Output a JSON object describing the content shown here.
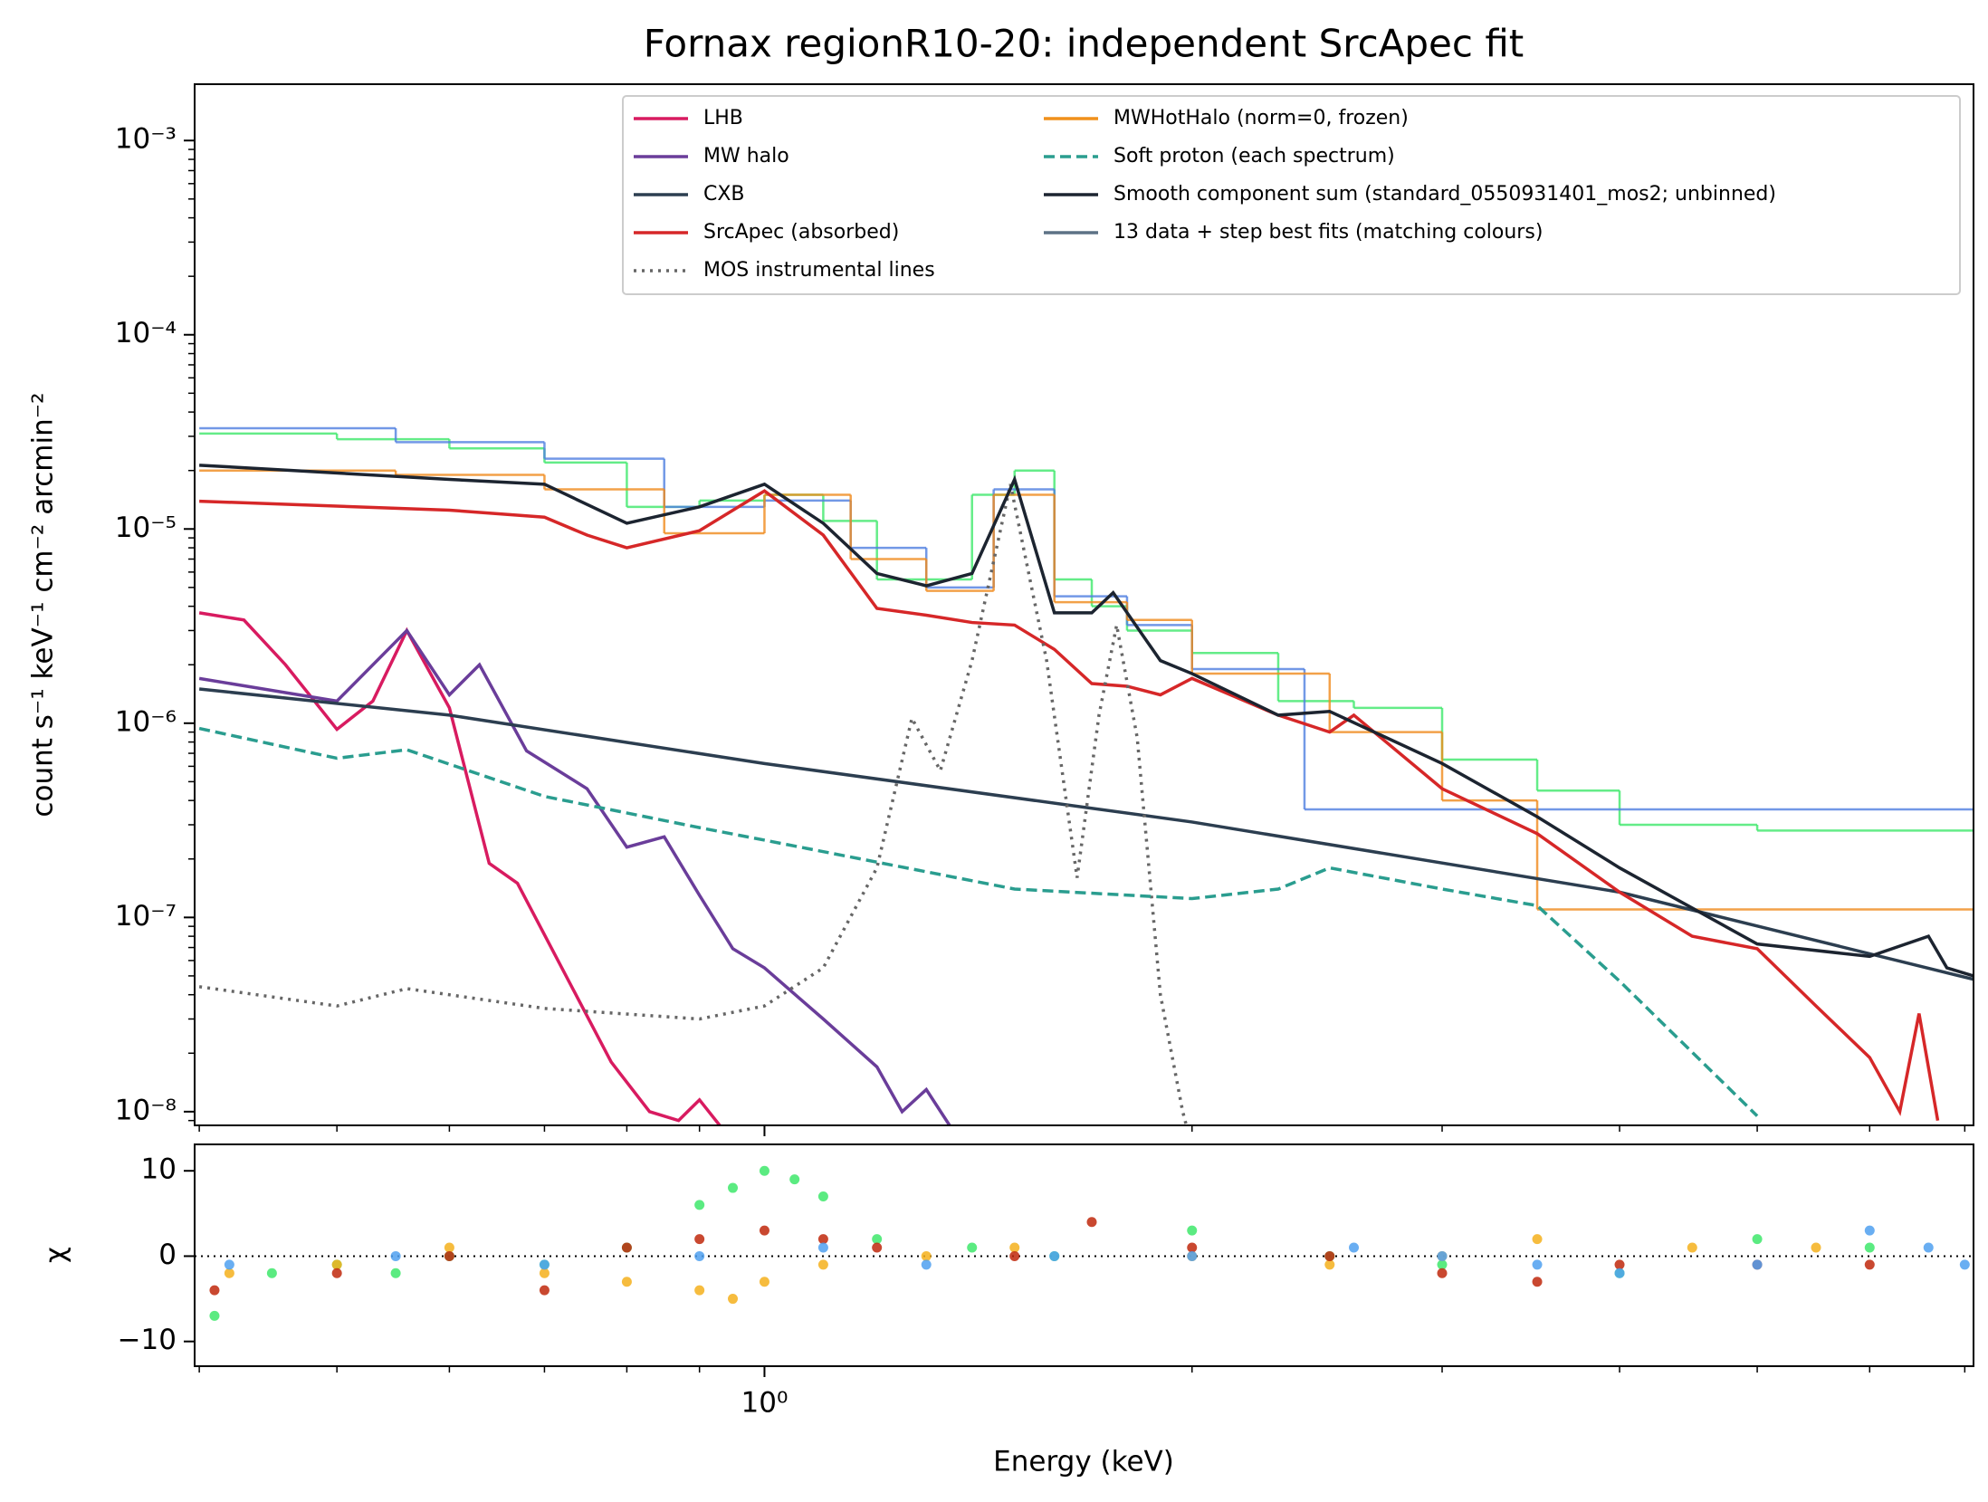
{
  "chart_data": [
    {
      "type": "line",
      "title": "Fornax regionR10-20: independent SrcApec fit",
      "ylabel": "count s⁻¹ keV⁻¹ cm⁻² arcmin⁻²",
      "xscale": "log",
      "yscale": "log",
      "xlim": [
        0.397,
        7.1
      ],
      "ylim": [
        8.5e-09,
        0.00195
      ],
      "yticks": [
        {
          "value": 1e-08,
          "label": "10⁻⁸"
        },
        {
          "value": 1e-07,
          "label": "10⁻⁷"
        },
        {
          "value": 1e-06,
          "label": "10⁻⁶"
        },
        {
          "value": 1e-05,
          "label": "10⁻⁵"
        },
        {
          "value": 0.0001,
          "label": "10⁻⁴"
        },
        {
          "value": 0.001,
          "label": "10⁻³"
        }
      ],
      "legend": "upper right",
      "series": [
        {
          "name": "LHB",
          "color": "#d81b60",
          "style": "solid",
          "x": [
            0.4,
            0.43,
            0.46,
            0.5,
            0.53,
            0.56,
            0.6,
            0.64,
            0.67,
            0.72,
            0.78,
            0.83,
            0.87,
            0.9,
            0.93
          ],
          "values": [
            3.7e-06,
            3.4e-06,
            2e-06,
            9.3e-07,
            1.3e-06,
            3e-06,
            1.2e-06,
            1.9e-07,
            1.5e-07,
            5.5e-08,
            1.8e-08,
            1e-08,
            9e-09,
            1.15e-08,
            8.5e-09
          ]
        },
        {
          "name": "MW halo",
          "color": "#6a3d9a",
          "style": "solid",
          "x": [
            0.4,
            0.5,
            0.56,
            0.6,
            0.63,
            0.68,
            0.75,
            0.8,
            0.85,
            0.9,
            0.95,
            1.0,
            1.1,
            1.2,
            1.25,
            1.3,
            1.35
          ],
          "values": [
            1.7e-06,
            1.3e-06,
            3e-06,
            1.4e-06,
            2e-06,
            7.2e-07,
            4.6e-07,
            2.3e-07,
            2.6e-07,
            1.3e-07,
            6.9e-08,
            5.5e-08,
            3e-08,
            1.7e-08,
            1e-08,
            1.3e-08,
            8.5e-09
          ]
        },
        {
          "name": "CXB",
          "color": "#2c3e50",
          "style": "solid",
          "x": [
            0.4,
            0.6,
            1.0,
            2.0,
            4.0,
            7.1
          ],
          "values": [
            1.5e-06,
            1.1e-06,
            6.2e-07,
            3.1e-07,
            1.35e-07,
            4.8e-08
          ]
        },
        {
          "name": "SrcApec (absorbed)",
          "color": "#d62728",
          "style": "solid",
          "x": [
            0.4,
            0.6,
            0.7,
            0.75,
            0.8,
            0.9,
            1.0,
            1.1,
            1.2,
            1.3,
            1.4,
            1.5,
            1.6,
            1.7,
            1.8,
            1.9,
            2.0,
            2.3,
            2.5,
            2.6,
            3.0,
            3.5,
            4.0,
            4.5,
            5.0,
            5.5,
            6.0,
            6.3,
            6.5,
            6.7
          ],
          "values": [
            1.39e-05,
            1.25e-05,
            1.15e-05,
            9.3e-06,
            8e-06,
            9.8e-06,
            1.57e-05,
            9.3e-06,
            3.9e-06,
            3.6e-06,
            3.3e-06,
            3.2e-06,
            2.4e-06,
            1.6e-06,
            1.55e-06,
            1.4e-06,
            1.7e-06,
            1.1e-06,
            9e-07,
            1.1e-06,
            4.6e-07,
            2.7e-07,
            1.35e-07,
            8e-08,
            6.9e-08,
            3.5e-08,
            1.9e-08,
            1e-08,
            3.2e-08,
            9e-09
          ]
        },
        {
          "name": "MOS instrumental lines",
          "color": "#666666",
          "style": "dotted",
          "x": [
            0.4,
            0.5,
            0.56,
            0.7,
            0.9,
            1.0,
            1.1,
            1.2,
            1.27,
            1.33,
            1.4,
            1.49,
            1.58,
            1.66,
            1.72,
            1.77,
            1.83,
            1.9,
            1.97,
            2.0
          ],
          "values": [
            4.4e-08,
            3.5e-08,
            4.3e-08,
            3.4e-08,
            3e-08,
            3.5e-08,
            5.5e-08,
            1.8e-07,
            1.06e-06,
            5.7e-07,
            2.1e-06,
            1.7e-05,
            2.1e-06,
            1.6e-07,
            1.1e-06,
            3.2e-06,
            8.4e-07,
            4e-08,
            1e-08,
            6.6e-09
          ]
        },
        {
          "name": "MWHotHalo (norm=0, frozen)",
          "color": "#f0901c",
          "style": "solid"
        },
        {
          "name": "Soft proton (each spectrum)",
          "color": "#2a9d8f",
          "style": "dashed",
          "x": [
            0.4,
            0.5,
            0.56,
            0.7,
            0.9,
            1.0,
            1.5,
            2.0,
            2.3,
            2.5,
            3.0,
            3.5,
            4.0,
            5.0
          ],
          "values": [
            9.4e-07,
            6.6e-07,
            7.3e-07,
            4.2e-07,
            2.9e-07,
            2.5e-07,
            1.4e-07,
            1.25e-07,
            1.4e-07,
            1.8e-07,
            1.4e-07,
            1.15e-07,
            4.7e-08,
            9.5e-09
          ]
        },
        {
          "name": "Smooth component sum (standard_0550931401_mos2; unbinned)",
          "color": "#1c2430",
          "style": "solid",
          "x": [
            0.4,
            0.6,
            0.7,
            0.8,
            0.9,
            1.0,
            1.1,
            1.2,
            1.3,
            1.4,
            1.5,
            1.6,
            1.7,
            1.76,
            1.9,
            2.0,
            2.3,
            2.5,
            3.0,
            3.5,
            4.0,
            5.0,
            6.0,
            6.6,
            6.8,
            7.1
          ],
          "values": [
            2.13e-05,
            1.8e-05,
            1.7e-05,
            1.07e-05,
            1.3e-05,
            1.7e-05,
            1.07e-05,
            5.9e-06,
            5.1e-06,
            5.9e-06,
            1.8e-05,
            3.7e-06,
            3.7e-06,
            4.7e-06,
            2.1e-06,
            1.8e-06,
            1.1e-06,
            1.15e-06,
            6.2e-07,
            3.3e-07,
            1.8e-07,
            7.3e-08,
            6.3e-08,
            8e-08,
            5.5e-08,
            5e-08
          ]
        },
        {
          "name": "13 data + step best fits (matching colours)",
          "color": "#5d7285",
          "style": "solid"
        }
      ],
      "steps": [
        {
          "color": "#3ee86b",
          "x": [
            0.4,
            0.5,
            0.6,
            0.7,
            0.8,
            0.9,
            1.0,
            1.1,
            1.2,
            1.3,
            1.4,
            1.5,
            1.6,
            1.7,
            1.8,
            2.0,
            2.3,
            2.6,
            3.0,
            3.5,
            4.0,
            5.0
          ],
          "values": [
            3.1e-05,
            2.9e-05,
            2.6e-05,
            2.2e-05,
            1.3e-05,
            1.4e-05,
            1.5e-05,
            1.1e-05,
            5.5e-06,
            5.5e-06,
            1.5e-05,
            2e-05,
            5.5e-06,
            4e-06,
            3e-06,
            2.3e-06,
            1.3e-06,
            1.2e-06,
            6.5e-07,
            4.5e-07,
            3e-07,
            2.8e-07
          ]
        },
        {
          "color": "#4f7fe0",
          "x": [
            0.4,
            0.55,
            0.7,
            0.85,
            1.0,
            1.15,
            1.3,
            1.45,
            1.6,
            1.8,
            2.0,
            2.4
          ],
          "values": [
            3.3e-05,
            2.8e-05,
            2.3e-05,
            1.3e-05,
            1.4e-05,
            8e-06,
            5e-06,
            1.6e-05,
            4.5e-06,
            3.2e-06,
            1.9e-06,
            3.6e-07
          ]
        },
        {
          "color": "#f08a1c",
          "x": [
            0.4,
            0.55,
            0.7,
            0.85,
            1.0,
            1.15,
            1.3,
            1.45,
            1.6,
            1.8,
            2.0,
            2.5,
            3.0,
            3.5
          ],
          "values": [
            2e-05,
            1.9e-05,
            1.6e-05,
            9.5e-06,
            1.5e-05,
            7e-06,
            4.8e-06,
            1.5e-05,
            4.2e-06,
            3.4e-06,
            1.8e-06,
            9e-07,
            4e-07,
            1.1e-07
          ]
        }
      ]
    },
    {
      "type": "scatter",
      "ylabel": "χ",
      "xlabel": "Energy (keV)",
      "xscale": "log",
      "xlim": [
        0.397,
        7.1
      ],
      "ylim": [
        -12.9,
        13.1
      ],
      "xticks": [
        {
          "value": 1,
          "label": "10⁰"
        }
      ],
      "yticks": [
        {
          "value": -10,
          "label": "−10"
        },
        0,
        10
      ],
      "hline": 0,
      "series": [
        {
          "color": "#3ee86b",
          "x": [
            0.41,
            0.45,
            0.5,
            0.55,
            0.6,
            0.7,
            0.8,
            0.9,
            0.95,
            1.0,
            1.05,
            1.1,
            1.2,
            1.4,
            1.6,
            2.0,
            2.5,
            3.0,
            4.0,
            5.0,
            6.0
          ],
          "values": [
            -7,
            -2,
            -1,
            -2,
            0,
            -1,
            1,
            6,
            8,
            10,
            9,
            7,
            2,
            1,
            0,
            3,
            0,
            -1,
            -2,
            2,
            1
          ]
        },
        {
          "color": "#f5b01c",
          "x": [
            0.42,
            0.5,
            0.6,
            0.7,
            0.8,
            0.9,
            0.95,
            1.0,
            1.1,
            1.3,
            1.5,
            2.0,
            2.5,
            3.0,
            3.5,
            4.5,
            5.5
          ],
          "values": [
            -2,
            -1,
            1,
            -2,
            -3,
            -4,
            -5,
            -3,
            -1,
            0,
            1,
            0,
            -1,
            0,
            2,
            1,
            1
          ]
        },
        {
          "color": "#c0280c",
          "x": [
            0.41,
            0.5,
            0.6,
            0.7,
            0.8,
            0.9,
            1.0,
            1.1,
            1.2,
            1.5,
            1.7,
            2.0,
            2.5,
            3.0,
            3.5,
            4.0,
            5.0,
            6.0
          ],
          "values": [
            -4,
            -2,
            0,
            -4,
            1,
            2,
            3,
            2,
            1,
            0,
            4,
            1,
            0,
            -2,
            -3,
            -1,
            -1,
            -1
          ]
        },
        {
          "color": "#4fa0f0",
          "x": [
            0.42,
            0.55,
            0.7,
            0.9,
            1.1,
            1.3,
            1.6,
            2.0,
            2.6,
            3.0,
            3.5,
            4.0,
            5.0,
            6.0,
            6.6,
            7.0
          ],
          "values": [
            -1,
            0,
            -1,
            0,
            1,
            -1,
            0,
            0,
            1,
            0,
            -1,
            -2,
            -1,
            3,
            1,
            -1
          ]
        }
      ]
    }
  ]
}
